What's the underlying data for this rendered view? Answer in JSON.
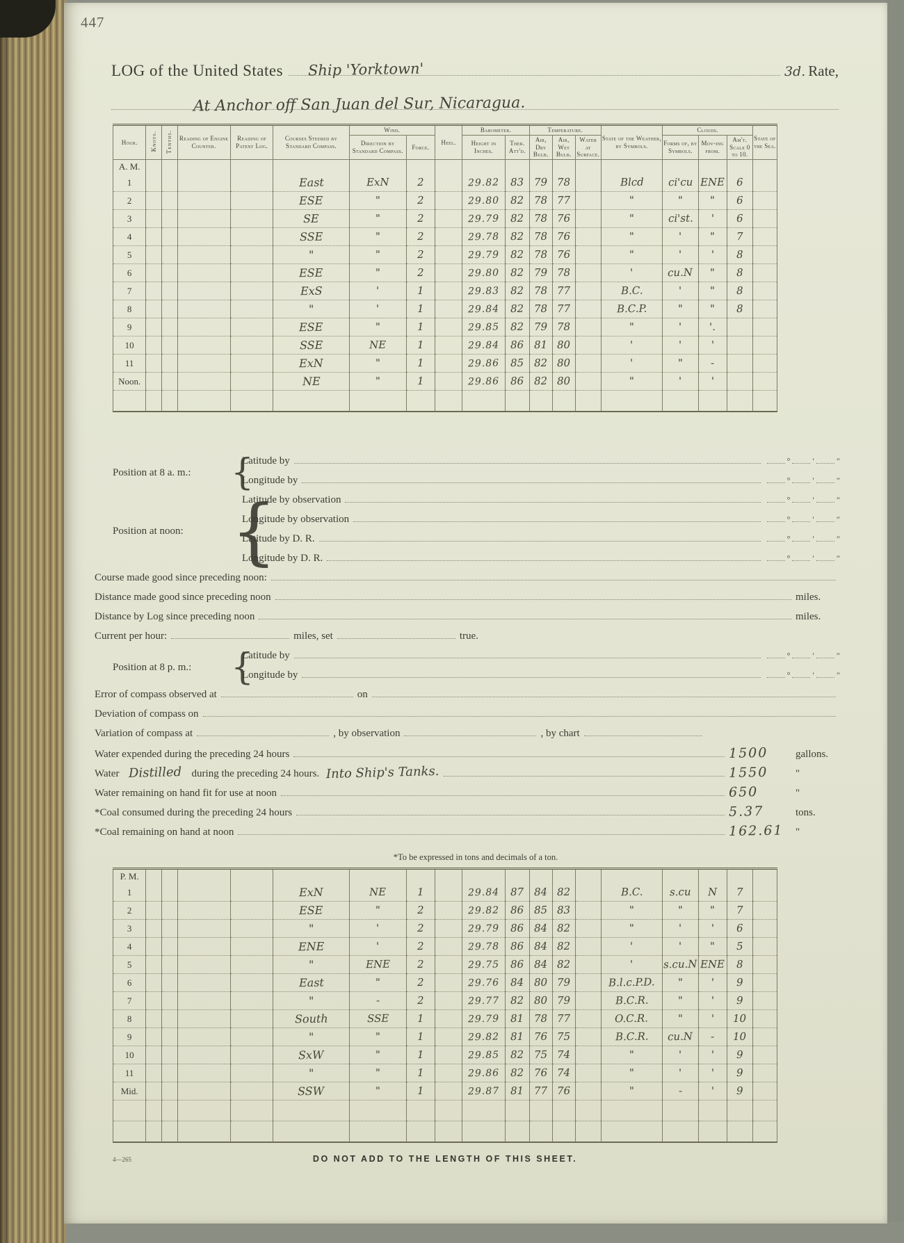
{
  "page": {
    "number": "447",
    "footer_left": "4—265",
    "footer_center": "DO NOT ADD TO THE LENGTH OF THIS SHEET.",
    "footnote": "*To be expressed in tons and decimals of a ton."
  },
  "header": {
    "printed_title": "LOG of the United States",
    "ship_name": "Ship 'Yorktown'",
    "rate_value": "3d.",
    "rate_label": "Rate,",
    "location_line": "At Anchor off San Juan del Sur, Nicaragua."
  },
  "table": {
    "headers": {
      "hour": "Hour.",
      "knots": "Knots.",
      "tenths": "Tenths.",
      "engine": "Reading of Engine Counter.",
      "patent": "Reading of Patent Log.",
      "courses": "Courses Steered by Standard Compass.",
      "wind": "Wind.",
      "wind_dir": "Direction by Standard Compass.",
      "force": "Force.",
      "heel": "Heel.",
      "barometer": "Barometer.",
      "bar_height": "Height in Inches.",
      "ther": "Ther. Att'd.",
      "temperature": "Temperature.",
      "dry": "Air, Dry Bulb.",
      "wet": "Air, Wet Bulb.",
      "water": "Water at Surface.",
      "weather": "State of the Weather, by Symbols.",
      "clouds": "Clouds.",
      "forms": "Forms of, by Symbols.",
      "moving": "Mov-ing from.",
      "amt": "Am't. Scale 0 to 10.",
      "sea": "State of the Sea."
    },
    "am_label": "A. M.",
    "pm_label": "P. M.",
    "am_rows": [
      {
        "hour": "1",
        "course": "East",
        "dir": "ExN",
        "force": "2",
        "bar": "29.82",
        "ther": "83",
        "dry": "79",
        "wet": "78",
        "wx": "Blcd",
        "cl": "ci'cu",
        "mv": "ENE",
        "amt": "6"
      },
      {
        "hour": "2",
        "course": "ESE",
        "dir": "\"",
        "force": "2",
        "bar": "29.80",
        "ther": "82",
        "dry": "78",
        "wet": "77",
        "wx": "\"",
        "cl": "\"",
        "mv": "\"",
        "amt": "6"
      },
      {
        "hour": "3",
        "course": "SE",
        "dir": "\"",
        "force": "2",
        "bar": "29.79",
        "ther": "82",
        "dry": "78",
        "wet": "76",
        "wx": "\"",
        "cl": "ci'st.",
        "mv": "'",
        "amt": "6"
      },
      {
        "hour": "4",
        "course": "SSE",
        "dir": "\"",
        "force": "2",
        "bar": "29.78",
        "ther": "82",
        "dry": "78",
        "wet": "76",
        "wx": "\"",
        "cl": "'",
        "mv": "\"",
        "amt": "7"
      },
      {
        "hour": "5",
        "course": "\"",
        "dir": "\"",
        "force": "2",
        "bar": "29.79",
        "ther": "82",
        "dry": "78",
        "wet": "76",
        "wx": "\"",
        "cl": "'",
        "mv": "'",
        "amt": "8"
      },
      {
        "hour": "6",
        "course": "ESE",
        "dir": "\"",
        "force": "2",
        "bar": "29.80",
        "ther": "82",
        "dry": "79",
        "wet": "78",
        "wx": "'",
        "cl": "cu.N",
        "mv": "\"",
        "amt": "8"
      },
      {
        "hour": "7",
        "course": "ExS",
        "dir": "'",
        "force": "1",
        "bar": "29.83",
        "ther": "82",
        "dry": "78",
        "wet": "77",
        "wx": "B.C.",
        "cl": "'",
        "mv": "\"",
        "amt": "8"
      },
      {
        "hour": "8",
        "course": "\"",
        "dir": "'",
        "force": "1",
        "bar": "29.84",
        "ther": "82",
        "dry": "78",
        "wet": "77",
        "wx": "B.C.P.",
        "cl": "\"",
        "mv": "\"",
        "amt": "8"
      },
      {
        "hour": "9",
        "course": "ESE",
        "dir": "\"",
        "force": "1",
        "bar": "29.85",
        "ther": "82",
        "dry": "79",
        "wet": "78",
        "wx": "\"",
        "cl": "'",
        "mv": "'.",
        "amt": ""
      },
      {
        "hour": "10",
        "course": "SSE",
        "dir": "NE",
        "force": "1",
        "bar": "29.84",
        "ther": "86",
        "dry": "81",
        "wet": "80",
        "wx": "'",
        "cl": "'",
        "mv": "'",
        "amt": ""
      },
      {
        "hour": "11",
        "course": "ExN",
        "dir": "\"",
        "force": "1",
        "bar": "29.86",
        "ther": "85",
        "dry": "82",
        "wet": "80",
        "wx": "'",
        "cl": "\"",
        "mv": "-",
        "amt": ""
      },
      {
        "hour": "Noon.",
        "course": "NE",
        "dir": "\"",
        "force": "1",
        "bar": "29.86",
        "ther": "86",
        "dry": "82",
        "wet": "80",
        "wx": "\"",
        "cl": "'",
        "mv": "'",
        "amt": ""
      }
    ],
    "pm_rows": [
      {
        "hour": "1",
        "course": "ExN",
        "dir": "NE",
        "force": "1",
        "bar": "29.84",
        "ther": "87",
        "dry": "84",
        "wet": "82",
        "wx": "B.C.",
        "cl": "s.cu",
        "mv": "N",
        "amt": "7"
      },
      {
        "hour": "2",
        "course": "ESE",
        "dir": "\"",
        "force": "2",
        "bar": "29.82",
        "ther": "86",
        "dry": "85",
        "wet": "83",
        "wx": "\"",
        "cl": "\"",
        "mv": "\"",
        "amt": "7"
      },
      {
        "hour": "3",
        "course": "\"",
        "dir": "'",
        "force": "2",
        "bar": "29.79",
        "ther": "86",
        "dry": "84",
        "wet": "82",
        "wx": "\"",
        "cl": "'",
        "mv": "'",
        "amt": "6"
      },
      {
        "hour": "4",
        "course": "ENE",
        "dir": "'",
        "force": "2",
        "bar": "29.78",
        "ther": "86",
        "dry": "84",
        "wet": "82",
        "wx": "'",
        "cl": "'",
        "mv": "\"",
        "amt": "5"
      },
      {
        "hour": "5",
        "course": "\"",
        "dir": "ENE",
        "force": "2",
        "bar": "29.75",
        "ther": "86",
        "dry": "84",
        "wet": "82",
        "wx": "'",
        "cl": "s.cu.N",
        "mv": "ENE",
        "amt": "8"
      },
      {
        "hour": "6",
        "course": "East",
        "dir": "\"",
        "force": "2",
        "bar": "29.76",
        "ther": "84",
        "dry": "80",
        "wet": "79",
        "wx": "B.l.c.P.D.",
        "cl": "\"",
        "mv": "'",
        "amt": "9"
      },
      {
        "hour": "7",
        "course": "\"",
        "dir": "-",
        "force": "2",
        "bar": "29.77",
        "ther": "82",
        "dry": "80",
        "wet": "79",
        "wx": "B.C.R.",
        "cl": "\"",
        "mv": "'",
        "amt": "9"
      },
      {
        "hour": "8",
        "course": "South",
        "dir": "SSE",
        "force": "1",
        "bar": "29.79",
        "ther": "81",
        "dry": "78",
        "wet": "77",
        "wx": "O.C.R.",
        "cl": "\"",
        "mv": "'",
        "amt": "10"
      },
      {
        "hour": "9",
        "course": "\"",
        "dir": "\"",
        "force": "1",
        "bar": "29.82",
        "ther": "81",
        "dry": "76",
        "wet": "75",
        "wx": "B.C.R.",
        "cl": "cu.N",
        "mv": "-",
        "amt": "10"
      },
      {
        "hour": "10",
        "course": "SxW",
        "dir": "\"",
        "force": "1",
        "bar": "29.85",
        "ther": "82",
        "dry": "75",
        "wet": "74",
        "wx": "\"",
        "cl": "'",
        "mv": "'",
        "amt": "9"
      },
      {
        "hour": "11",
        "course": "\"",
        "dir": "\"",
        "force": "1",
        "bar": "29.86",
        "ther": "82",
        "dry": "76",
        "wet": "74",
        "wx": "\"",
        "cl": "'",
        "mv": "'",
        "amt": "9"
      },
      {
        "hour": "Mid.",
        "course": "SSW",
        "dir": "\"",
        "force": "1",
        "bar": "29.87",
        "ther": "81",
        "dry": "77",
        "wet": "76",
        "wx": "\"",
        "cl": "-",
        "mv": "'",
        "amt": "9"
      }
    ]
  },
  "form": {
    "pos8am": {
      "label": "Position at 8 a. m.:",
      "sub": [
        "Latitude by",
        "Longitude by"
      ]
    },
    "posnoon": {
      "label": "Position at noon:",
      "sub": [
        "Latitude by observation",
        "Longitude by observation",
        "Latitude by D. R.",
        "Longitude by D. R."
      ]
    },
    "course_made": "Course made good since preceding noon:",
    "dist_made": {
      "label": "Distance made good since preceding noon",
      "unit": "miles."
    },
    "dist_log": {
      "label": "Distance by Log since preceding noon",
      "unit": "miles."
    },
    "current": {
      "label": "Current per hour:",
      "mid": "miles, set",
      "end": "true."
    },
    "pos8pm": {
      "label": "Position at 8 p. m.:",
      "sub": [
        "Latitude by",
        "Longitude by"
      ]
    },
    "error": {
      "label": "Error of compass observed at",
      "mid": "on"
    },
    "deviation": "Deviation of compass on",
    "variation": {
      "label": "Variation of compass at",
      "mid": ", by observation",
      "end": ", by chart"
    },
    "water_expended": {
      "label": "Water expended during the preceding 24 hours",
      "value": "1500",
      "unit": "gallons."
    },
    "water_made": {
      "label": "Water",
      "hw1": "Distilled",
      "mid": "during the preceding 24 hours.",
      "hw2": "Into  Ship's  Tanks.",
      "value": "1550",
      "unit": "\""
    },
    "water_remaining": {
      "label": "Water remaining on hand fit for use at noon",
      "value": "650",
      "unit": "\""
    },
    "coal_consumed": {
      "label": "*Coal consumed during the preceding 24 hours",
      "value": "5.37",
      "unit": "tons."
    },
    "coal_remaining": {
      "label": "*Coal remaining on hand at noon",
      "value": "162.61",
      "unit": "\""
    }
  }
}
